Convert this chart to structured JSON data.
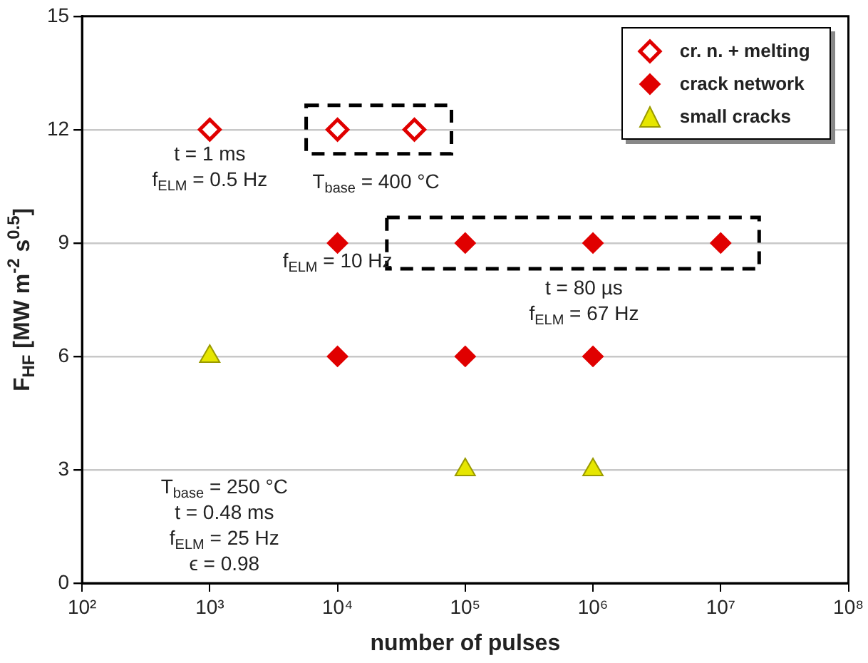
{
  "chart_data": {
    "type": "scatter",
    "xlabel": "number of pulses",
    "ylabel": "F$_{HF}$ [MW m$^{-2}$ s$^{0.5}$]",
    "log": "x",
    "grid": "y",
    "legend": "top right",
    "xlim": [
      100,
      100000000
    ],
    "xticks": [
      {
        "value": 100,
        "label": "10²"
      },
      {
        "value": 1000,
        "label": "10³"
      },
      {
        "value": 10000,
        "label": "10⁴"
      },
      {
        "value": 100000,
        "label": "10⁵"
      },
      {
        "value": 1000000,
        "label": "10⁶"
      },
      {
        "value": 10000000,
        "label": "10⁷"
      },
      {
        "value": 100000000,
        "label": "10⁸"
      }
    ],
    "ylim": [
      0,
      15
    ],
    "yticks": [
      0,
      3,
      6,
      9,
      12,
      15
    ],
    "series": [
      {
        "name": "cr. n. + melting",
        "color": "#e00000",
        "marker": "diamond",
        "x": [
          1000,
          10000,
          40000
        ],
        "values": [
          12,
          12,
          12
        ]
      },
      {
        "name": "crack network",
        "color": "#e00000",
        "marker": "diamond",
        "x": [
          10000,
          100000,
          1000000,
          10000000,
          10000,
          100000,
          1000000
        ],
        "values": [
          9,
          9,
          9,
          9,
          6,
          6,
          6
        ]
      },
      {
        "name": "small cracks",
        "color": "#e6e600",
        "marker": "triangle",
        "x": [
          1000,
          100000,
          1000000
        ],
        "values": [
          6,
          3,
          3
        ]
      }
    ],
    "annotations": [
      "t = 1 ms\nf$_{ELM}$ = 0.5 Hz",
      "T$_{base}$ = 400 °C",
      "f$_{ELM}$ = 10 Hz",
      "t = 80 µs\nf$_{ELM}$ = 67 Hz",
      "T$_{base}$ = 250 °C\nt = 0.48 ms\nf$_{ELM}$ = 25 Hz\nϵ = 0.98"
    ]
  }
}
